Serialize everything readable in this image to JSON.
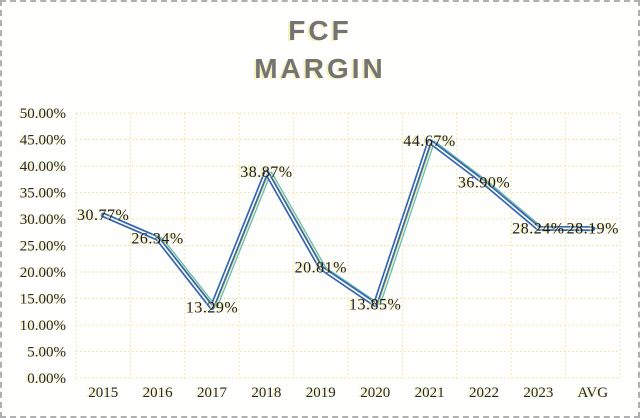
{
  "chart_data": {
    "type": "line",
    "title": "FCF MARGIN",
    "title_lines": [
      "FCF",
      "MARGIN"
    ],
    "categories": [
      "2015",
      "2016",
      "2017",
      "2018",
      "2019",
      "2020",
      "2021",
      "2022",
      "2023",
      "AVG"
    ],
    "series": [
      {
        "name": "FCF Margin",
        "values": [
          30.77,
          26.34,
          13.29,
          38.87,
          20.81,
          13.85,
          44.67,
          36.9,
          28.24,
          28.19
        ]
      }
    ],
    "data_labels": [
      "30.77%",
      "26.34%",
      "13.29%",
      "38.87%",
      "20.81%",
      "13.85%",
      "44.67%",
      "36.90%",
      "28.24%",
      "28.19%"
    ],
    "y_ticks": [
      "50.00%",
      "45.00%",
      "40.00%",
      "35.00%",
      "30.00%",
      "25.00%",
      "20.00%",
      "15.00%",
      "10.00%",
      "5.00%",
      "0.00%"
    ],
    "ylim": [
      0,
      50
    ],
    "xlabel": "",
    "ylabel": "",
    "grid": true,
    "legend_position": "none",
    "colors": {
      "line": "#3566b0",
      "line_core": "#ffffff",
      "ghost_yellow": "#e3de6e",
      "ghost_teal": "#45b2af",
      "gridline": "#e9e39a",
      "title_text": "#747474",
      "axis_text": "#262626",
      "label_text": "#1c1c1c",
      "background": "#fefefd",
      "border": "#b0b0b0"
    }
  }
}
